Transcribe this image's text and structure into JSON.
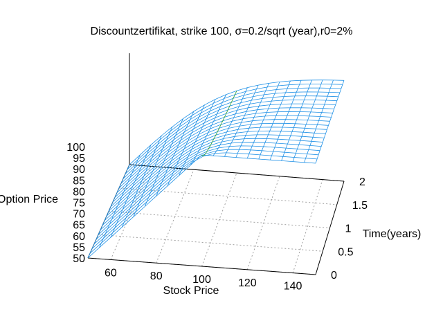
{
  "chart_data": {
    "type": "surface",
    "title": "Discountzertifikat, strike 100, σ=0.2/sqrt (year),r0=2%",
    "xlabel": "Stock Price",
    "ylabel": "Time(years)",
    "zlabel": "Option Price",
    "xlim": [
      50,
      150
    ],
    "ylim": [
      0,
      2
    ],
    "zlim": [
      50,
      100
    ],
    "xticks": [
      "60",
      "80",
      "100",
      "120",
      "140"
    ],
    "yticks": [
      "0",
      "0.5",
      "1",
      "1.5",
      "2"
    ],
    "zticks": [
      "50",
      "55",
      "60",
      "65",
      "70",
      "75",
      "80",
      "85",
      "90",
      "95",
      "100"
    ],
    "strike": 100,
    "sigma": 0.2,
    "r0": 0.02,
    "stock_price_grid": [
      50,
      55,
      60,
      65,
      70,
      75,
      80,
      85,
      90,
      95,
      100,
      105,
      110,
      115,
      120,
      125,
      130,
      135,
      140,
      145,
      150
    ],
    "time_grid": [
      0,
      0.1,
      0.2,
      0.3,
      0.4,
      0.5,
      0.6,
      0.7,
      0.8,
      0.9,
      1.0,
      1.1,
      1.2,
      1.3,
      1.4,
      1.5,
      1.6,
      1.7,
      1.8,
      1.9,
      2.0
    ],
    "grid": true,
    "colors": {
      "mesh": "#1e90e6",
      "mesh_accent": "#2ca02c",
      "axis": "#000000",
      "gridline": "#a0a0a0"
    }
  }
}
